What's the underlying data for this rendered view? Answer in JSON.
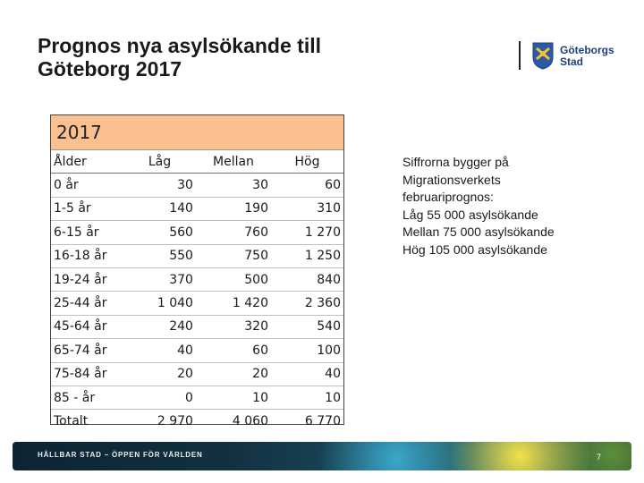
{
  "title": {
    "line1": "Prognos nya asylsökande till",
    "line2": "Göteborg 2017"
  },
  "logo": {
    "line1": "Göteborgs",
    "line2": "Stad"
  },
  "table": {
    "year": "2017",
    "headers": [
      "Ålder",
      "Låg",
      "Mellan",
      "Hög"
    ],
    "rows": [
      [
        "0 år",
        "30",
        "30",
        "60"
      ],
      [
        "1-5 år",
        "140",
        "190",
        "310"
      ],
      [
        "6-15 år",
        "560",
        "760",
        "1 270"
      ],
      [
        "16-18 år",
        "550",
        "750",
        "1 250"
      ],
      [
        "19-24 år",
        "370",
        "500",
        "840"
      ],
      [
        "25-44 år",
        "1 040",
        "1 420",
        "2 360"
      ],
      [
        "45-64 år",
        "240",
        "320",
        "540"
      ],
      [
        "65-74 år",
        "40",
        "60",
        "100"
      ],
      [
        "75-84 år",
        "20",
        "20",
        "40"
      ],
      [
        "85 - år",
        "0",
        "10",
        "10"
      ]
    ],
    "total": [
      "Totalt",
      "2 970",
      "4 060",
      "6 770"
    ]
  },
  "note": {
    "line1": "Siffrorna bygger på",
    "line2": "Migrationsverkets",
    "line3": "februariprognos:",
    "line4": "Låg 55 000 asylsökande",
    "line5": "Mellan 75 000 asylsökande",
    "line6": "Hög 105 000 asylsökande"
  },
  "footer": {
    "text": "HÅLLBAR STAD – ÖPPEN FÖR VÄRLDEN",
    "page": "7"
  }
}
